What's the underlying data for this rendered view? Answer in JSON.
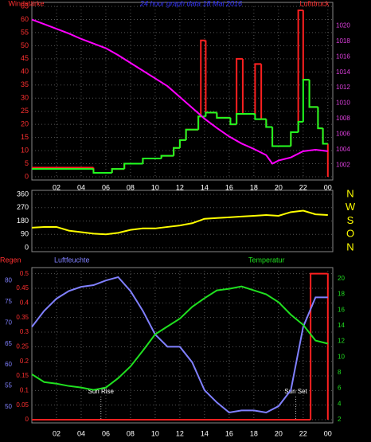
{
  "chart_data": [
    {
      "type": "line",
      "title": "24 hour graph data  18 Mai 2016",
      "ylabel": "Windstärke",
      "y2label": "Luftdruck",
      "xlim": [
        0,
        24.4
      ],
      "xticks": [
        {
          "value": 2,
          "label": "02"
        },
        {
          "value": 4,
          "label": "04"
        },
        {
          "value": 6,
          "label": "06"
        },
        {
          "value": 8,
          "label": "08"
        },
        {
          "value": 10,
          "label": "10"
        },
        12,
        14,
        16,
        18,
        20,
        22,
        {
          "value": 24,
          "label": "00"
        }
      ],
      "ylim": [
        0,
        65
      ],
      "yticks": [
        0,
        5,
        10,
        15,
        20,
        25,
        30,
        35,
        40,
        45,
        50,
        55,
        60,
        65
      ],
      "y2lim": [
        1000.5,
        1022.5
      ],
      "y2ticks": [
        1002,
        1004,
        1006,
        1008,
        1010,
        1012,
        1014,
        1016,
        1018,
        1020
      ],
      "grid": true,
      "series": [
        {
          "color": "#ff2020",
          "step": true,
          "x": [
            0,
            5,
            6.5,
            7.5,
            9,
            10.5,
            11.5,
            12,
            12.5,
            13.5,
            13.7,
            14.1,
            15,
            16.1,
            16.6,
            17.1,
            17.5,
            18.1,
            18.6,
            19,
            19.5,
            20,
            21,
            21.6,
            22,
            22.5,
            23.2,
            23.6,
            24
          ],
          "values": [
            3.5,
            1.5,
            3,
            5,
            7,
            8,
            11,
            14,
            18,
            23,
            52,
            24.5,
            22.5,
            20,
            45,
            24,
            24,
            43,
            22,
            19,
            11.7,
            11.7,
            17,
            63.5,
            37,
            26.6,
            18.5,
            12.6,
            0
          ]
        },
        {
          "color": "#20ff20",
          "step": true,
          "x": [
            0,
            5,
            6.5,
            7.5,
            9,
            10.5,
            11.5,
            12,
            12.5,
            13.5,
            13.7,
            14.1,
            15,
            16.1,
            16.6,
            17.1,
            17.5,
            18.1,
            18.6,
            19,
            19.5,
            20,
            21,
            21.6,
            22,
            22.5,
            23.2,
            23.6,
            24
          ],
          "values": [
            3,
            1.5,
            3,
            5,
            7,
            8,
            11,
            14,
            18,
            23,
            23,
            24.5,
            22.5,
            20,
            24,
            24,
            24,
            22,
            22,
            19,
            11.7,
            11.7,
            17,
            21,
            37,
            26.6,
            18.5,
            12.6,
            12.6
          ]
        },
        {
          "color": "#ff00ff",
          "axis": "y2",
          "x": [
            0,
            1,
            2,
            3,
            4,
            5,
            6,
            7,
            8,
            9,
            10,
            11,
            12,
            13,
            14,
            15,
            16,
            17,
            18,
            19,
            19.5,
            20,
            21,
            22,
            23,
            24
          ],
          "values": [
            1020.8,
            1020.2,
            1019.6,
            1019,
            1018.3,
            1017.7,
            1017.1,
            1016.2,
            1015.2,
            1014.2,
            1013.2,
            1012.2,
            1010.8,
            1009.4,
            1008,
            1006.8,
            1005.7,
            1004.8,
            1004.1,
            1003.3,
            1002.2,
            1002.6,
            1003,
            1003.8,
            1004,
            1003.8
          ]
        }
      ]
    },
    {
      "type": "line",
      "xlim": [
        0,
        24.4
      ],
      "ylim": [
        0,
        360
      ],
      "yticks": [
        0,
        90,
        180,
        270,
        360
      ],
      "y2lim": [
        0,
        360
      ],
      "y2ticks": [
        {
          "value": 360,
          "label": "N"
        },
        {
          "value": 270,
          "label": "W"
        },
        {
          "value": 180,
          "label": "S"
        },
        {
          "value": 90,
          "label": "O"
        },
        {
          "value": 0,
          "label": "N"
        }
      ],
      "grid": true,
      "series": [
        {
          "color": "#ffff00",
          "x": [
            0,
            1,
            2,
            3,
            4,
            5,
            6,
            7,
            8,
            9,
            10,
            11,
            12,
            13,
            14,
            15,
            16,
            17,
            18,
            19,
            20,
            21,
            22,
            23,
            24
          ],
          "values": [
            135,
            140,
            140,
            115,
            105,
            95,
            90,
            100,
            120,
            130,
            130,
            140,
            150,
            165,
            195,
            200,
            205,
            210,
            215,
            220,
            215,
            240,
            250,
            225,
            220
          ]
        }
      ]
    },
    {
      "type": "line",
      "ylabel": "Regen",
      "y3label": "Luftfeuchte",
      "y2label": "Temperatur",
      "xlim": [
        0,
        24.4
      ],
      "xticks": [
        {
          "value": 2,
          "label": "02"
        },
        {
          "value": 4,
          "label": "04"
        },
        {
          "value": 6,
          "label": "06"
        },
        {
          "value": 8,
          "label": "08"
        },
        {
          "value": 10,
          "label": "10"
        },
        12,
        14,
        16,
        18,
        20,
        22,
        {
          "value": 24,
          "label": "00"
        }
      ],
      "ylim": [
        0,
        0.51
      ],
      "yticks": [
        0,
        0.05,
        0.1,
        0.15,
        0.2,
        0.25,
        0.3,
        0.35,
        0.4,
        0.45,
        0.5
      ],
      "y3lim": [
        47,
        82.3
      ],
      "y3ticks": [
        50,
        55,
        60,
        65,
        70,
        75,
        80
      ],
      "y2lim": [
        2,
        21
      ],
      "y2ticks": [
        2,
        4,
        6,
        8,
        10,
        12,
        14,
        16,
        18,
        20
      ],
      "grid": true,
      "annotations": [
        {
          "text": "Sun Rise",
          "x": 5.6
        },
        {
          "text": "Sun Set",
          "x": 21.4
        }
      ],
      "series": [
        {
          "color": "#ff2020",
          "step": true,
          "x": [
            0,
            22.6,
            24
          ],
          "values": [
            0,
            0.5,
            0
          ]
        },
        {
          "color": "#8080ff",
          "axis": "y3",
          "x": [
            0,
            1,
            2,
            3,
            4,
            5,
            6,
            7,
            8,
            9,
            10,
            11,
            12,
            13,
            14,
            15,
            16,
            17,
            18,
            19,
            20,
            21,
            22,
            23,
            24
          ],
          "values": [
            69,
            72.8,
            75.7,
            77.5,
            78.5,
            78.9,
            80,
            80.8,
            77.5,
            72.8,
            67.2,
            64.3,
            64.3,
            60.6,
            54,
            51.1,
            48.7,
            49.2,
            49.2,
            48.7,
            50.2,
            54,
            69,
            76,
            76
          ]
        },
        {
          "color": "#20e020",
          "axis": "y2",
          "x": [
            0,
            1,
            2,
            3,
            4,
            5,
            6,
            7,
            8,
            9,
            10,
            11,
            12,
            13,
            14,
            15,
            16,
            17,
            18,
            19,
            20,
            21,
            22,
            23,
            24
          ],
          "values": [
            7.8,
            6.8,
            6.6,
            6.3,
            6.1,
            5.8,
            6.1,
            7.3,
            8.8,
            10.8,
            12.9,
            13.9,
            14.9,
            16.4,
            17.5,
            18.5,
            18.7,
            19,
            18.5,
            18,
            17,
            15.4,
            14.1,
            12.1,
            11.7
          ]
        }
      ]
    }
  ]
}
